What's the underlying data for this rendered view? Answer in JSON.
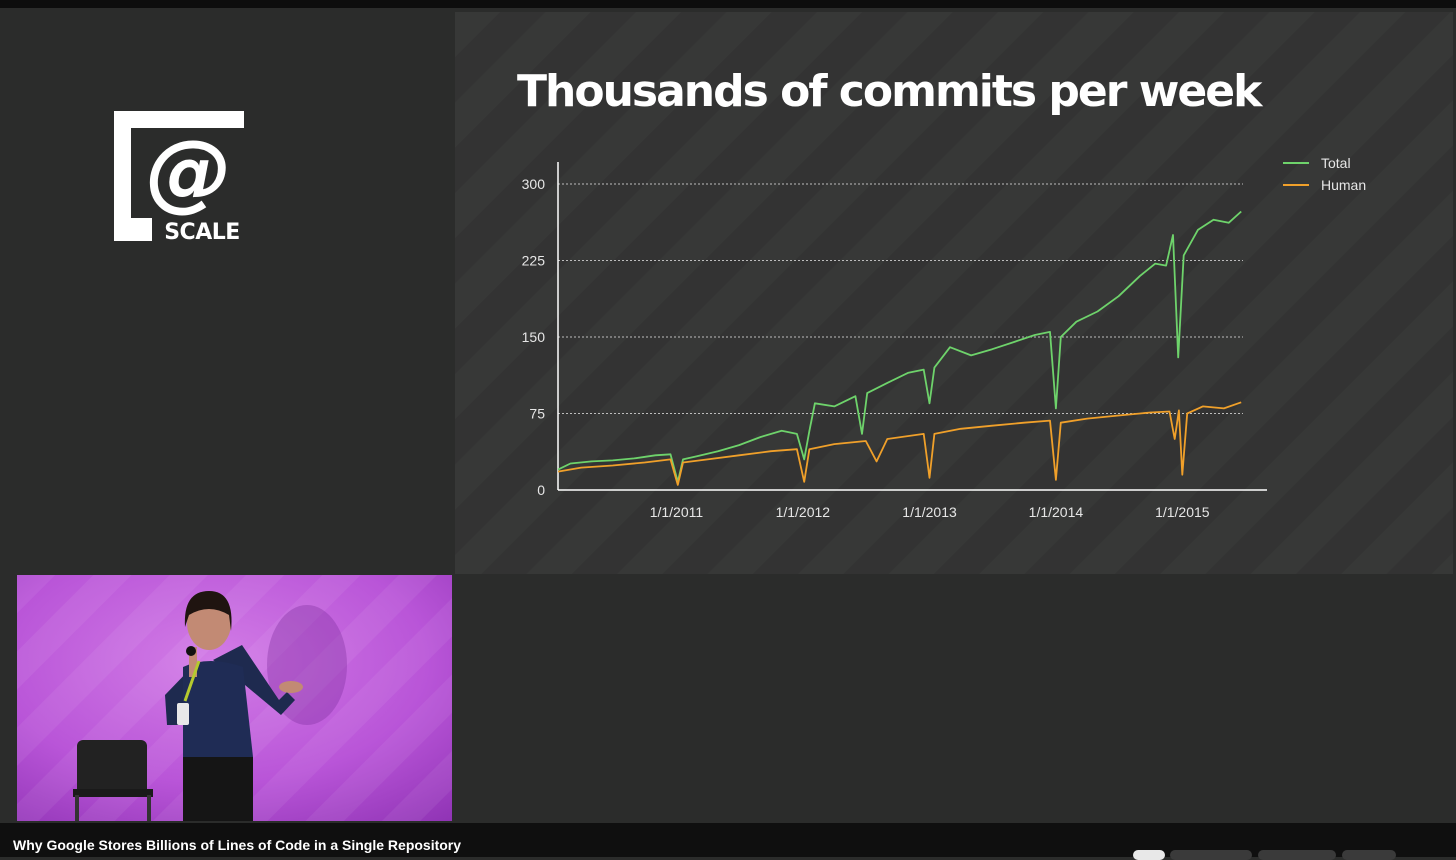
{
  "logo": {
    "glyph": "@",
    "text": "SCALE"
  },
  "slide": {
    "title": "Thousands of commits per week"
  },
  "video": {
    "title": "Why Google Stores Billions of Lines of Code in a Single Repository"
  },
  "colors": {
    "total": "#6ed36b",
    "human": "#f0a02a",
    "background": "#2b2c2b",
    "slide": "#333433"
  },
  "chart_data": {
    "type": "line",
    "title": "Thousands of commits per week",
    "xlabel": "",
    "ylabel": "",
    "ylim": [
      0,
      300
    ],
    "yticks": [
      0,
      75,
      150,
      225,
      300
    ],
    "xlim": [
      "2010-01-24",
      "2015-07-01"
    ],
    "xticks": [
      "2011-01-01",
      "2012-01-01",
      "2013-01-01",
      "2014-01-01",
      "2015-01-01"
    ],
    "xtick_labels": [
      "1/1/2011",
      "1/1/2012",
      "1/1/2013",
      "1/1/2014",
      "1/1/2015"
    ],
    "grid": true,
    "legend": "top-right",
    "series": [
      {
        "name": "Total",
        "color": "#6ed36b",
        "points": [
          [
            "2010-01-24",
            20
          ],
          [
            "2010-03-01",
            26
          ],
          [
            "2010-05-01",
            28
          ],
          [
            "2010-07-01",
            29
          ],
          [
            "2010-09-01",
            31
          ],
          [
            "2010-11-01",
            34
          ],
          [
            "2010-12-15",
            35
          ],
          [
            "2011-01-05",
            8
          ],
          [
            "2011-01-20",
            30
          ],
          [
            "2011-03-01",
            33
          ],
          [
            "2011-05-01",
            38
          ],
          [
            "2011-07-01",
            44
          ],
          [
            "2011-09-01",
            52
          ],
          [
            "2011-11-01",
            58
          ],
          [
            "2011-12-15",
            55
          ],
          [
            "2012-01-05",
            30
          ],
          [
            "2012-01-20",
            58
          ],
          [
            "2012-02-05",
            85
          ],
          [
            "2012-04-01",
            82
          ],
          [
            "2012-06-01",
            92
          ],
          [
            "2012-06-20",
            55
          ],
          [
            "2012-07-05",
            95
          ],
          [
            "2012-09-01",
            105
          ],
          [
            "2012-11-01",
            115
          ],
          [
            "2012-12-15",
            118
          ],
          [
            "2013-01-01",
            85
          ],
          [
            "2013-01-15",
            120
          ],
          [
            "2013-03-01",
            140
          ],
          [
            "2013-05-01",
            132
          ],
          [
            "2013-07-01",
            138
          ],
          [
            "2013-09-01",
            145
          ],
          [
            "2013-11-01",
            152
          ],
          [
            "2013-12-15",
            155
          ],
          [
            "2014-01-01",
            80
          ],
          [
            "2014-01-15",
            150
          ],
          [
            "2014-03-01",
            165
          ],
          [
            "2014-05-01",
            175
          ],
          [
            "2014-07-01",
            190
          ],
          [
            "2014-09-01",
            210
          ],
          [
            "2014-10-15",
            222
          ],
          [
            "2014-11-15",
            220
          ],
          [
            "2014-12-05",
            250
          ],
          [
            "2014-12-20",
            130
          ],
          [
            "2015-01-05",
            230
          ],
          [
            "2015-02-15",
            255
          ],
          [
            "2015-04-01",
            265
          ],
          [
            "2015-05-15",
            262
          ],
          [
            "2015-06-20",
            273
          ]
        ]
      },
      {
        "name": "Human",
        "color": "#f0a02a",
        "points": [
          [
            "2010-01-24",
            18
          ],
          [
            "2010-04-01",
            22
          ],
          [
            "2010-07-01",
            24
          ],
          [
            "2010-10-01",
            27
          ],
          [
            "2010-12-15",
            30
          ],
          [
            "2011-01-05",
            5
          ],
          [
            "2011-01-20",
            27
          ],
          [
            "2011-04-01",
            30
          ],
          [
            "2011-07-01",
            34
          ],
          [
            "2011-10-01",
            38
          ],
          [
            "2011-12-15",
            40
          ],
          [
            "2012-01-05",
            8
          ],
          [
            "2012-01-20",
            40
          ],
          [
            "2012-04-01",
            45
          ],
          [
            "2012-07-01",
            48
          ],
          [
            "2012-08-01",
            28
          ],
          [
            "2012-09-01",
            50
          ],
          [
            "2012-12-15",
            55
          ],
          [
            "2013-01-01",
            12
          ],
          [
            "2013-01-15",
            55
          ],
          [
            "2013-04-01",
            60
          ],
          [
            "2013-07-01",
            63
          ],
          [
            "2013-10-01",
            66
          ],
          [
            "2013-12-15",
            68
          ],
          [
            "2014-01-01",
            10
          ],
          [
            "2014-01-15",
            66
          ],
          [
            "2014-04-01",
            70
          ],
          [
            "2014-07-01",
            73
          ],
          [
            "2014-10-01",
            76
          ],
          [
            "2014-11-25",
            77
          ],
          [
            "2014-12-10",
            50
          ],
          [
            "2014-12-22",
            78
          ],
          [
            "2015-01-01",
            15
          ],
          [
            "2015-01-15",
            75
          ],
          [
            "2015-03-01",
            82
          ],
          [
            "2015-05-01",
            80
          ],
          [
            "2015-06-20",
            86
          ]
        ]
      }
    ]
  }
}
